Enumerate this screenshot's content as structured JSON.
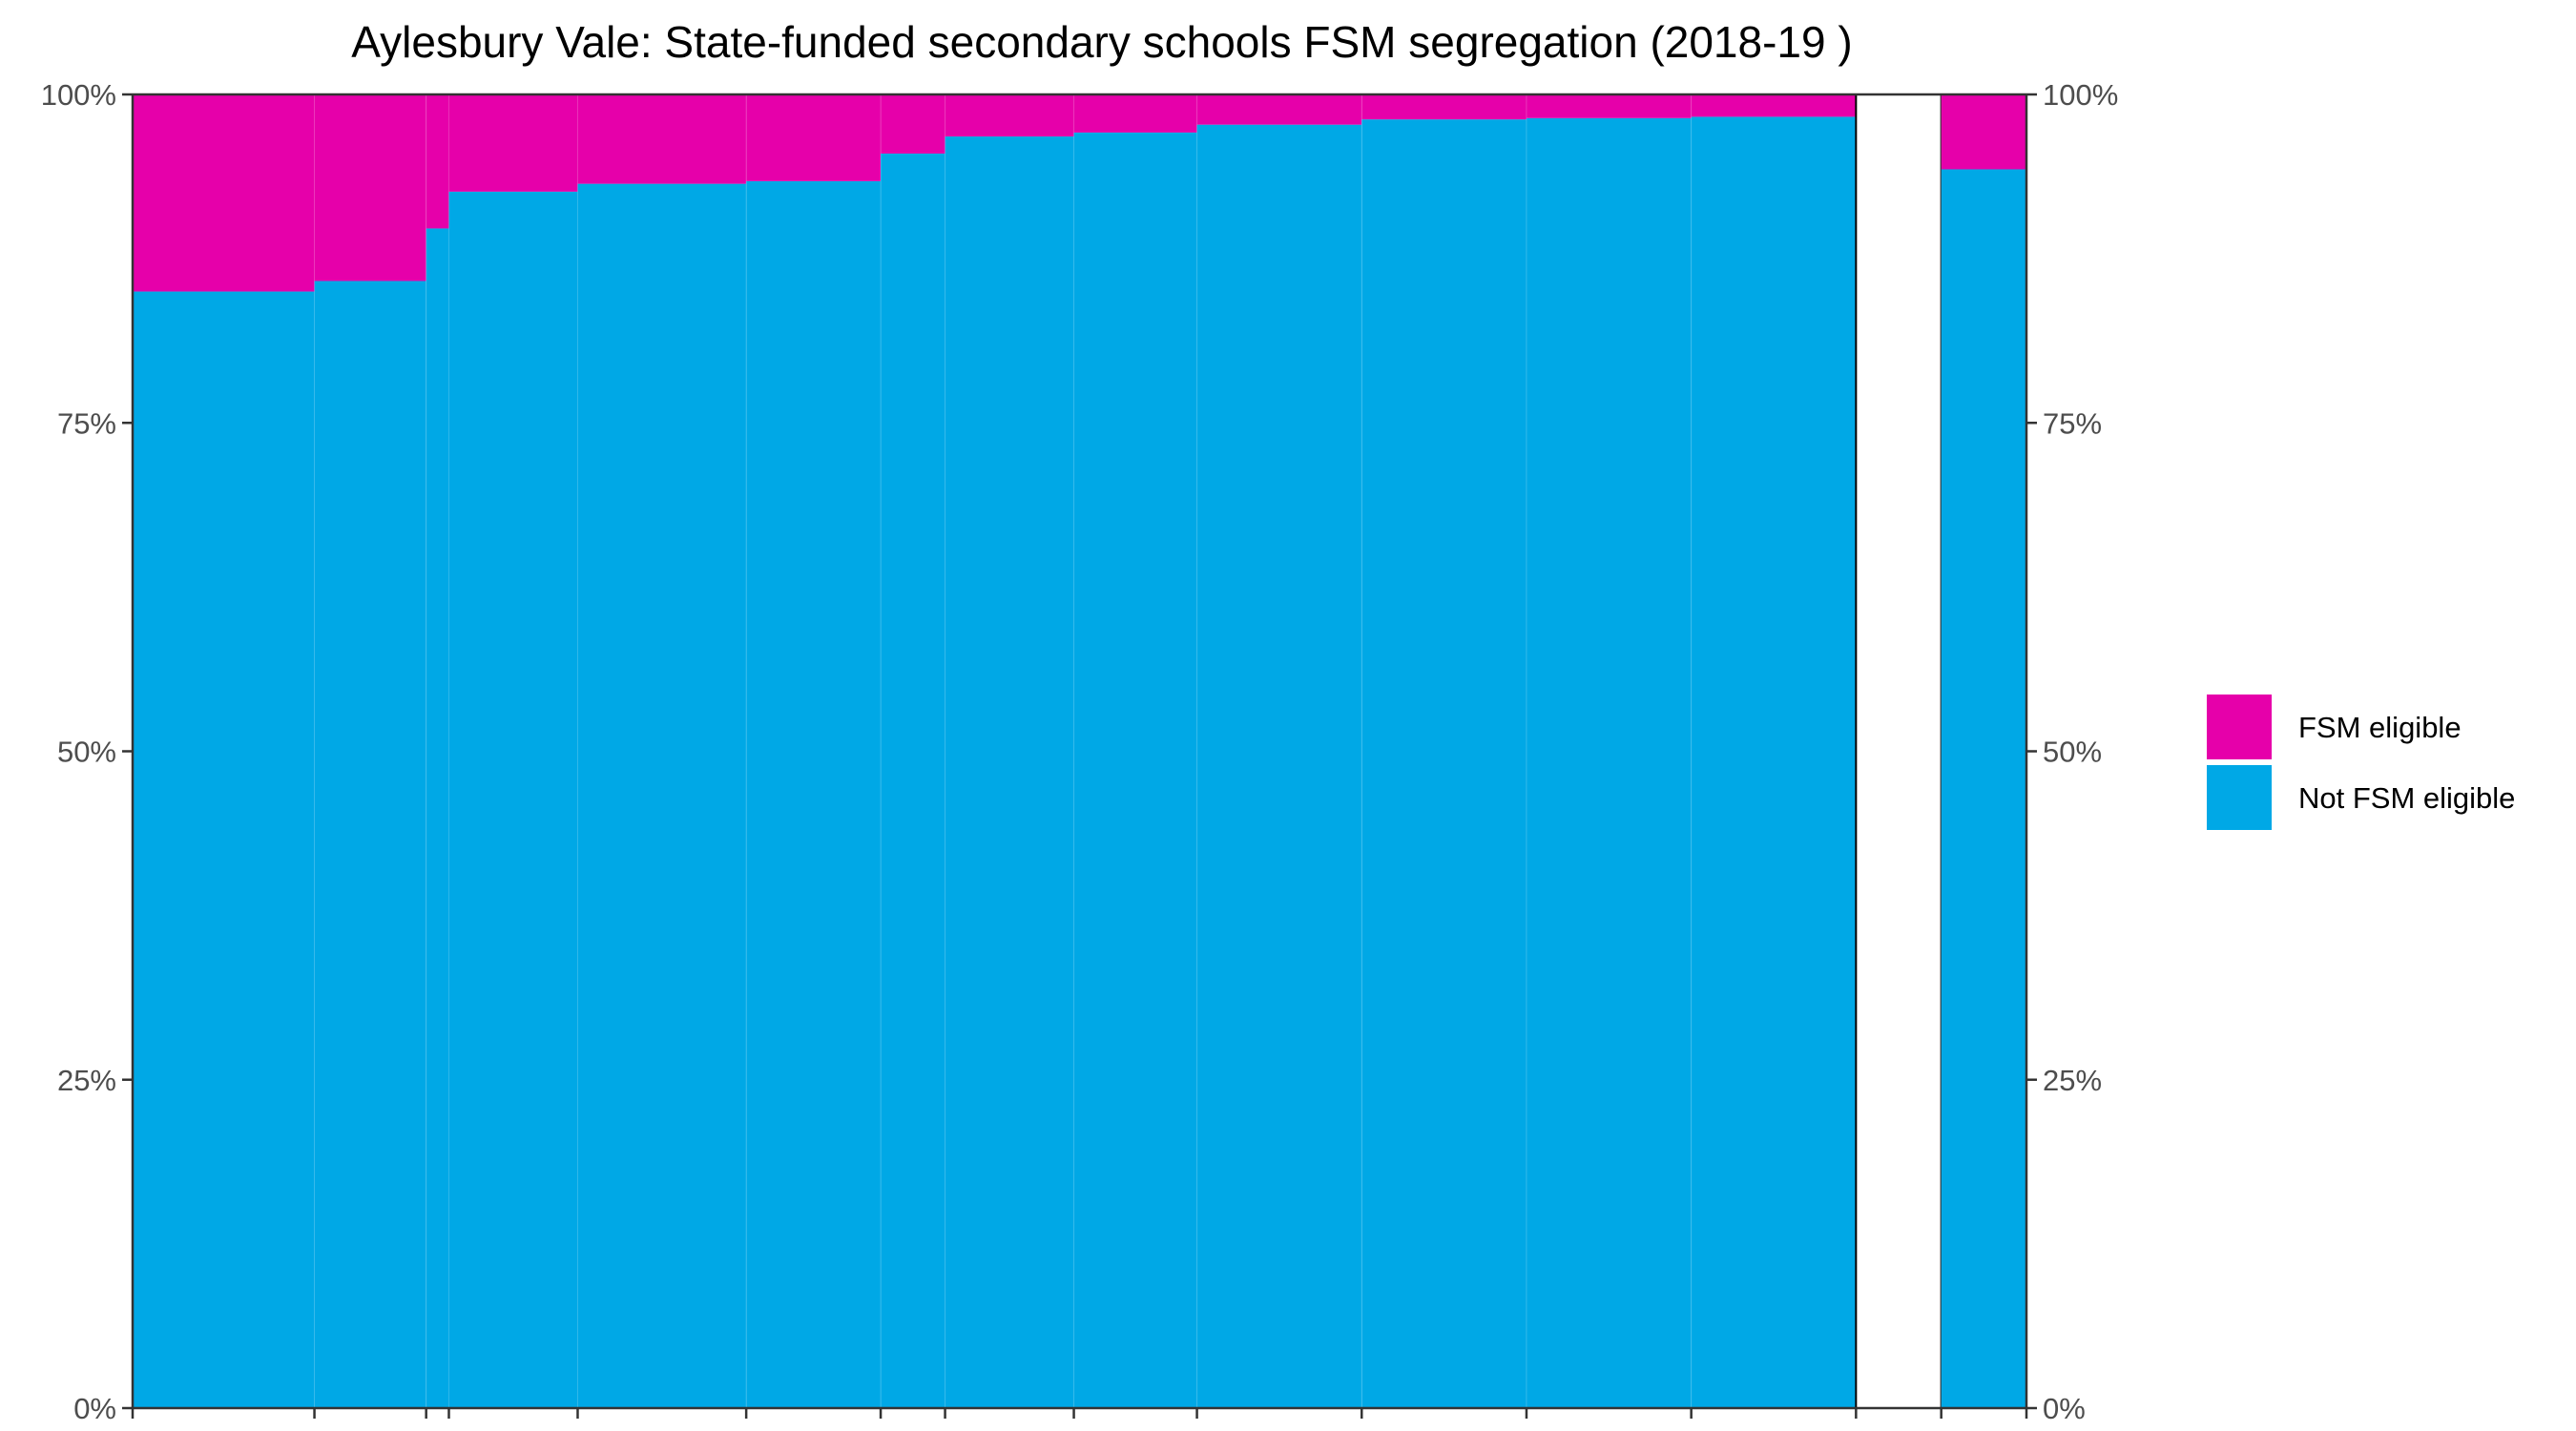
{
  "chart_data": {
    "type": "bar",
    "subtype": "stacked-100-percent-variable-width",
    "title": "Aylesbury Vale: State-funded secondary schools FSM segregation (2018-19 )",
    "xlabel": "",
    "ylabel": "",
    "ylim": [
      0,
      1
    ],
    "y_ticks": [
      0,
      0.25,
      0.5,
      0.75,
      1.0
    ],
    "y_tick_labels": [
      "0%",
      "25%",
      "50%",
      "75%",
      "100%"
    ],
    "y_axis_sides": [
      "left",
      "right"
    ],
    "x_ticks_labeled": false,
    "x_range": [
      0,
      100
    ],
    "grid": false,
    "legend": {
      "placement": "right"
    },
    "series": [
      {
        "name": "FSM eligible",
        "color": "#E600AA"
      },
      {
        "name": "Not FSM eligible",
        "color": "#00A8E6"
      }
    ],
    "bars": [
      {
        "x_start": 0.0,
        "width": 9.6,
        "not_fsm_share": 0.85
      },
      {
        "x_start": 9.6,
        "width": 5.9,
        "not_fsm_share": 0.858
      },
      {
        "x_start": 15.5,
        "width": 1.2,
        "not_fsm_share": 0.898
      },
      {
        "x_start": 16.7,
        "width": 6.8,
        "not_fsm_share": 0.926
      },
      {
        "x_start": 23.5,
        "width": 8.9,
        "not_fsm_share": 0.932
      },
      {
        "x_start": 32.4,
        "width": 7.1,
        "not_fsm_share": 0.934
      },
      {
        "x_start": 39.5,
        "width": 3.4,
        "not_fsm_share": 0.955
      },
      {
        "x_start": 42.9,
        "width": 6.8,
        "not_fsm_share": 0.968
      },
      {
        "x_start": 49.7,
        "width": 6.5,
        "not_fsm_share": 0.971
      },
      {
        "x_start": 56.2,
        "width": 8.7,
        "not_fsm_share": 0.977
      },
      {
        "x_start": 64.9,
        "width": 8.7,
        "not_fsm_share": 0.981
      },
      {
        "x_start": 73.6,
        "width": 8.7,
        "not_fsm_share": 0.982
      },
      {
        "x_start": 82.3,
        "width": 8.7,
        "not_fsm_share": 0.983
      },
      {
        "x_start": 91.0,
        "width": 4.5,
        "not_fsm_share": null
      },
      {
        "x_start": 95.5,
        "width": 4.5,
        "not_fsm_share": 0.943
      }
    ]
  }
}
